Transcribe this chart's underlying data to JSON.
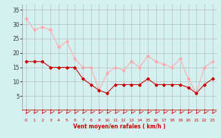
{
  "x": [
    0,
    1,
    2,
    3,
    4,
    5,
    6,
    7,
    8,
    9,
    10,
    11,
    12,
    13,
    14,
    15,
    16,
    17,
    18,
    19,
    20,
    21,
    22,
    23
  ],
  "wind_avg": [
    17,
    17,
    17,
    15,
    15,
    15,
    15,
    11,
    9,
    7,
    6,
    9,
    9,
    9,
    9,
    11,
    9,
    9,
    9,
    9,
    8,
    6,
    9,
    11
  ],
  "wind_gust": [
    32,
    28,
    29,
    28,
    22,
    24,
    18,
    15,
    15,
    7,
    13,
    15,
    14,
    17,
    15,
    19,
    17,
    16,
    15,
    18,
    11,
    6,
    15,
    17
  ],
  "avg_color": "#cc0000",
  "gust_color": "#ffaaaa",
  "bg_color": "#d4f0f0",
  "grid_color": "#bbbbbb",
  "xlabel": "Vent moyen/en rafales ( km/h )",
  "ylim": [
    0,
    37
  ],
  "xlim": [
    -0.5,
    23.5
  ],
  "yticks": [
    5,
    10,
    15,
    20,
    25,
    30,
    35
  ],
  "xtick_labels": [
    "0",
    "1",
    "2",
    "3",
    "4",
    "5",
    "6",
    "7",
    "8",
    "9",
    "10",
    "11",
    "12",
    "13",
    "14",
    "15",
    "16",
    "17",
    "18",
    "19",
    "20",
    "21",
    "22",
    "23"
  ],
  "marker": "D",
  "markersize": 2,
  "linewidth": 0.8
}
